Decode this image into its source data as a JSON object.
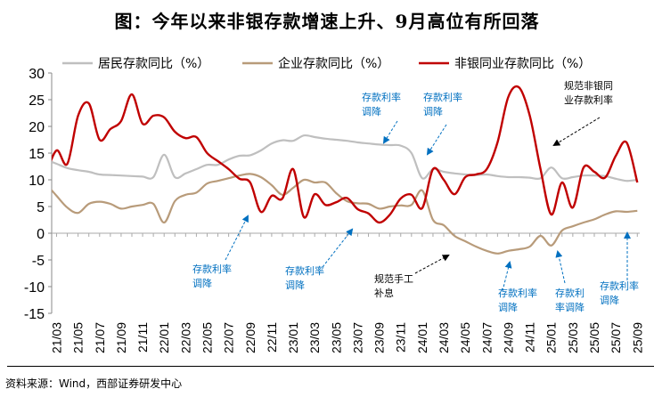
{
  "title": "图：今年以来非银存款增速上升、9月高位有所回落",
  "source": "资料来源：Wind，西部证券研发中心",
  "chart_data": {
    "type": "line",
    "title": "图：今年以来非银存款增速上升、9月高位有所回落",
    "xlabel": "",
    "ylabel": "",
    "ylim": [
      -15,
      30
    ],
    "yticks": [
      "30",
      "25",
      "20",
      "15",
      "10",
      "5",
      "0",
      "-5",
      "-10",
      "-15"
    ],
    "grid": false,
    "legend_position": "top",
    "x": [
      "21/02",
      "21/03",
      "21/04",
      "21/05",
      "21/06",
      "21/07",
      "21/08",
      "21/09",
      "21/10",
      "21/11",
      "21/12",
      "22/01",
      "22/02",
      "22/03",
      "22/04",
      "22/05",
      "22/06",
      "22/07",
      "22/08",
      "22/09",
      "22/10",
      "22/11",
      "22/12",
      "23/01",
      "23/02",
      "23/03",
      "23/04",
      "23/05",
      "23/06",
      "23/07",
      "23/08",
      "23/09",
      "23/10",
      "23/11",
      "23/12",
      "24/01",
      "24/02",
      "24/03",
      "24/04",
      "24/05",
      "24/06",
      "24/07",
      "24/08",
      "24/09",
      "24/10",
      "24/11",
      "24/12",
      "25/01",
      "25/02",
      "25/03",
      "25/04",
      "25/05",
      "25/06",
      "25/07",
      "25/08",
      "25/09"
    ],
    "xtick_labels": [
      "21/03",
      "21/05",
      "21/07",
      "21/09",
      "21/11",
      "22/01",
      "22/03",
      "22/05",
      "22/07",
      "22/09",
      "22/11",
      "23/01",
      "23/03",
      "23/05",
      "23/07",
      "23/09",
      "23/11",
      "24/01",
      "24/03",
      "24/05",
      "24/07",
      "24/09",
      "24/11",
      "25/01",
      "25/03",
      "25/05",
      "25/07",
      "25/09"
    ],
    "series": [
      {
        "name": "居民存款同比（%）",
        "color": "#BFBFBF",
        "values": [
          13.8,
          13.0,
          12.2,
          11.8,
          11.5,
          11.0,
          10.9,
          10.8,
          10.7,
          10.6,
          10.5,
          14.7,
          10.5,
          11.2,
          12.0,
          12.8,
          12.8,
          13.8,
          14.5,
          14.6,
          15.5,
          16.8,
          17.4,
          17.3,
          18.3,
          18.0,
          17.7,
          17.5,
          17.3,
          17.0,
          16.8,
          16.6,
          16.5,
          16.4,
          15.0,
          10.3,
          12.0,
          11.5,
          11.2,
          11.0,
          10.9,
          11.0,
          10.7,
          10.5,
          10.5,
          10.4,
          10.3,
          12.3,
          10.3,
          10.5,
          10.8,
          10.8,
          10.7,
          10.2,
          9.8,
          10.0
        ]
      },
      {
        "name": "企业存款同比（%）",
        "color": "#B89B7A",
        "values": [
          9.3,
          7.0,
          4.8,
          3.8,
          5.5,
          5.9,
          5.5,
          4.6,
          5.0,
          5.3,
          5.5,
          2.0,
          6.0,
          7.2,
          7.6,
          9.3,
          9.8,
          10.3,
          10.8,
          11.1,
          10.5,
          9.0,
          7.2,
          8.5,
          10.0,
          9.5,
          9.5,
          7.5,
          6.0,
          5.6,
          5.5,
          4.6,
          5.0,
          5.2,
          5.3,
          8.0,
          2.5,
          1.5,
          -0.5,
          -1.5,
          -2.5,
          -3.3,
          -3.8,
          -3.3,
          -3.0,
          -2.5,
          -0.5,
          -2.3,
          0.5,
          1.3,
          2.0,
          2.6,
          3.5,
          4.1,
          4.0,
          4.2
        ]
      },
      {
        "name": "非银同业存款同比（%）",
        "color": "#C00000",
        "values": [
          11.0,
          15.5,
          13.0,
          22.0,
          24.3,
          17.5,
          19.5,
          21.0,
          26.0,
          20.5,
          22.0,
          21.7,
          19.0,
          17.8,
          18.0,
          15.0,
          13.5,
          12.0,
          10.2,
          9.5,
          4.0,
          7.0,
          6.5,
          12.0,
          3.0,
          7.3,
          5.3,
          5.8,
          6.6,
          4.5,
          3.7,
          2.0,
          3.5,
          6.5,
          7.2,
          4.7,
          12.0,
          10.0,
          7.3,
          10.5,
          11.0,
          12.0,
          17.0,
          25.5,
          27.3,
          22.0,
          12.0,
          3.5,
          9.5,
          4.8,
          12.3,
          11.5,
          10.4,
          14.5,
          17.0,
          9.5
        ]
      }
    ],
    "annotations": [
      {
        "text": [
          "存款利率",
          "调降"
        ],
        "color": "#0070C0"
      },
      {
        "text": [
          "存款利率",
          "调降"
        ],
        "color": "#0070C0"
      },
      {
        "text": [
          "存款利率",
          "调降"
        ],
        "color": "#0070C0"
      },
      {
        "text": [
          "规范非银同",
          "业存款利率"
        ],
        "color": "#000000"
      },
      {
        "text": [
          "存款利率",
          "调降"
        ],
        "color": "#0070C0"
      },
      {
        "text": [
          "存款利率",
          "调降"
        ],
        "color": "#0070C0"
      },
      {
        "text": [
          "规范手工",
          "补息"
        ],
        "color": "#000000"
      },
      {
        "text": [
          "存款利率",
          "调降"
        ],
        "color": "#0070C0"
      },
      {
        "text": [
          "存款利",
          "率调降"
        ],
        "color": "#0070C0"
      },
      {
        "text": [
          "存款利率",
          "调降"
        ],
        "color": "#0070C0"
      }
    ]
  }
}
